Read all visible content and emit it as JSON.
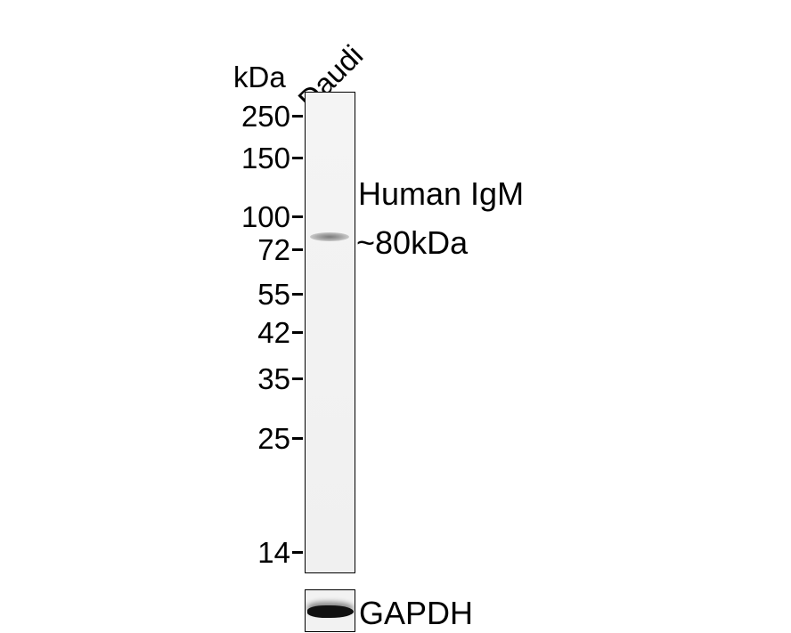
{
  "unit_label": "kDa",
  "lane_label": "Daudi",
  "markers": [
    "250",
    "150",
    "100",
    "72",
    "55",
    "42",
    "35",
    "25",
    "14"
  ],
  "target": {
    "name": "Human IgM",
    "size": "~80kDa"
  },
  "loading_control": "GAPDH"
}
